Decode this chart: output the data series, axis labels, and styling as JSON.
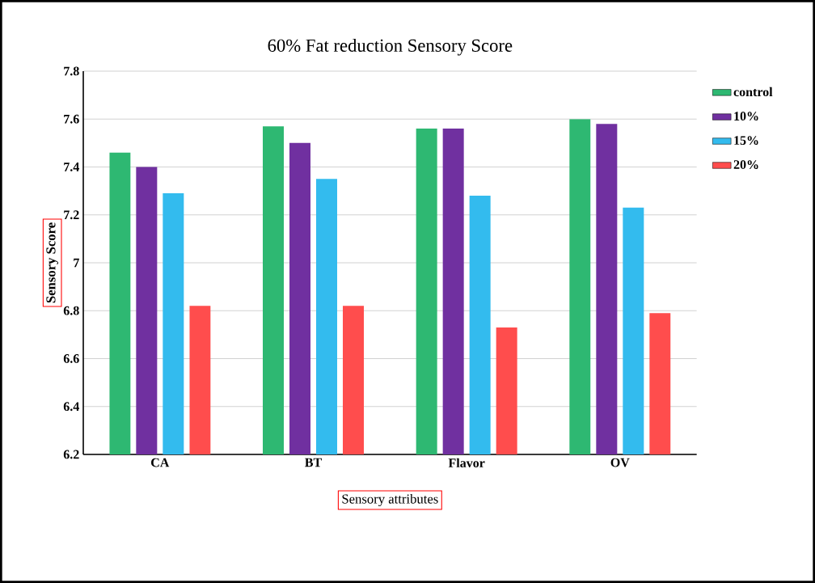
{
  "chart_data": {
    "type": "bar",
    "title": "60% Fat reduction Sensory Score",
    "xlabel": "Sensory attributes",
    "ylabel": "Sensory Score",
    "categories": [
      "CA",
      "BT",
      "Flavor",
      "OV"
    ],
    "series": [
      {
        "name": "control",
        "color": "#2eb872",
        "values": [
          7.46,
          7.57,
          7.56,
          7.6
        ]
      },
      {
        "name": "10%",
        "color": "#7030a0",
        "values": [
          7.4,
          7.5,
          7.56,
          7.58
        ]
      },
      {
        "name": "15%",
        "color": "#33bbee",
        "values": [
          7.29,
          7.35,
          7.28,
          7.23
        ]
      },
      {
        "name": "20%",
        "color": "#ff4d4d",
        "values": [
          6.82,
          6.82,
          6.73,
          6.79
        ]
      }
    ],
    "ylim": [
      6.2,
      7.8
    ],
    "yticks": [
      6.2,
      6.4,
      6.6,
      6.8,
      7,
      7.2,
      7.4,
      7.6,
      7.8
    ],
    "grid": "y",
    "legend": "top right"
  }
}
